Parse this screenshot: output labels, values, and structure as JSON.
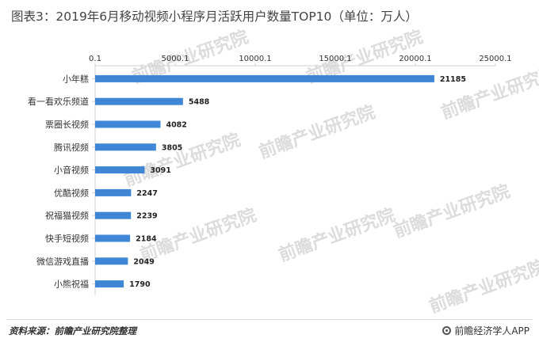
{
  "title": "图表3：2019年6月移动视频小程序月活跃用户数量TOP10（单位：万人）",
  "footer": {
    "source": "资料来源：前瞻产业研究院整理",
    "brand": "前瞻经济学人APP"
  },
  "watermark": "前瞻产业研究院",
  "colors": {
    "bar": "#3f86d6",
    "axis": "#d0d0d0"
  },
  "chart_data": {
    "type": "bar",
    "orientation": "horizontal",
    "title": "图表3：2019年6月移动视频小程序月活跃用户数量TOP10（单位：万人）",
    "categories": [
      "小年糕",
      "看一看欢乐频道",
      "票圈长视频",
      "腾讯视频",
      "小音视频",
      "优酷视频",
      "祝福猫视频",
      "快手短视频",
      "微信游戏直播",
      "小熊祝福"
    ],
    "values": [
      21185,
      5488,
      4082,
      3805,
      3091,
      2247,
      2239,
      2184,
      2049,
      1790
    ],
    "value_labels": [
      "21185",
      "5488",
      "4082",
      "3805",
      "3091",
      "2247",
      "2239",
      "2184",
      "2049",
      "1790"
    ],
    "x_ticks": [
      0.1,
      5000.1,
      10000.1,
      15000.1,
      20000.1,
      25000.1
    ],
    "x_tick_labels": [
      "0.1",
      "5000.1",
      "10000.1",
      "15000.1",
      "20000.1",
      "25000.1"
    ],
    "xlim": [
      0.1,
      25000.1
    ],
    "x_axis_position": "top",
    "grid": false,
    "legend": "none"
  }
}
